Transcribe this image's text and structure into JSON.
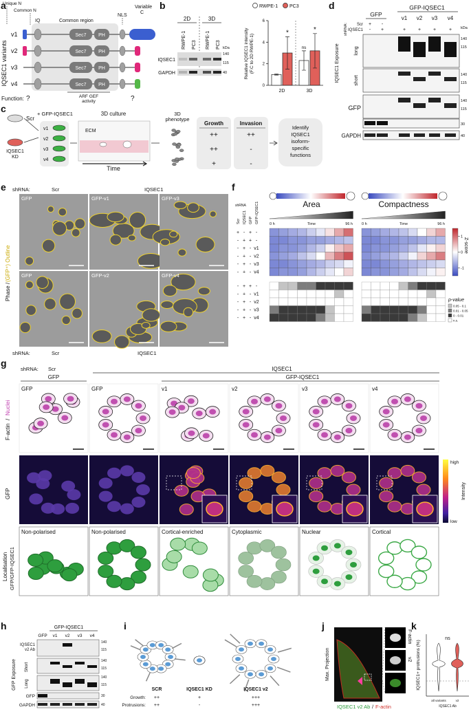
{
  "a": {
    "letter": "a",
    "unique_n": "Unique N",
    "common_n": "Common N",
    "iq": "IQ",
    "common_region": "Common region",
    "nls": "NLS",
    "variable_c": [
      "Variable",
      "C"
    ],
    "sec7": "Sec7",
    "ph": "PH",
    "variants_title": "IQSEC1 variants",
    "variants": [
      "v1",
      "v2",
      "v3",
      "v4"
    ],
    "function": "Function:",
    "unknown": "?",
    "arf_gef": [
      "ARF GEF",
      "activity"
    ]
  },
  "b": {
    "letter": "b",
    "blot": {
      "conditions": [
        "2D",
        "3D"
      ],
      "lanes": [
        "RWPE-1",
        "PC3",
        "RWPE-1",
        "PC3"
      ],
      "rows": [
        "IQSEC1",
        "GAPDH"
      ],
      "kda": "kDa",
      "markers": [
        "140",
        "115",
        "40"
      ]
    },
    "chart_data": {
      "type": "bar",
      "ylabel": [
        "Relative IQSEC1 intensity",
        "(F.C to 2D RWPE-1)"
      ],
      "categories": [
        "2D",
        "3D"
      ],
      "series": [
        {
          "name": "RWPE-1",
          "color": "#ffffff",
          "values": [
            1,
            2.3
          ],
          "errors": [
            0.05,
            0.9
          ]
        },
        {
          "name": "PC3",
          "color": "#e0605a",
          "values": [
            3.0,
            3.2
          ],
          "errors": [
            1.5,
            1.6
          ]
        }
      ],
      "annotations": [
        {
          "series": 1,
          "index": 0,
          "text": "*"
        },
        {
          "series": 0,
          "index": 1,
          "text": "ns"
        },
        {
          "series": 1,
          "index": 1,
          "text": "*"
        }
      ],
      "ylim": [
        0,
        6
      ],
      "yticks": [
        0,
        2,
        4,
        6
      ]
    }
  },
  "c": {
    "letter": "c",
    "scr": "Scr",
    "kd": [
      "IQSEC1",
      "KD"
    ],
    "add": "+ GFP-IQSEC1",
    "variants": [
      "v1",
      "v2",
      "v3",
      "v4"
    ],
    "culture": "3D culture",
    "ecm": "ECM",
    "time": "Time",
    "phenotype": [
      "3D",
      "phenotype"
    ],
    "growth": "Growth",
    "invasion": "Invasion",
    "growth_values": [
      "++",
      "++",
      "+"
    ],
    "invasion_values": [
      "++",
      "-",
      "-"
    ],
    "identify": [
      "Identify",
      "IQSEC1",
      "isoform-",
      "specific",
      "functions"
    ]
  },
  "d": {
    "letter": "d",
    "gfp": "GFP",
    "gfp_iqsec1": "GFP-IQSEC1",
    "variants": [
      "v1",
      "v2",
      "v3",
      "v4"
    ],
    "shrna": "shRNA:",
    "scr": "Scr",
    "iqsec1": "IQSEC1",
    "scr_signs": [
      "+",
      "-"
    ],
    "iqsec1_signs": [
      "-",
      "+",
      "+",
      "+",
      "+",
      "+"
    ],
    "exposure": "IQSEC1 Exposure",
    "long": "long",
    "short": "short",
    "gfp_row": "GFP",
    "gapdh": "GAPDH",
    "kda": "kDa",
    "markers": [
      "140",
      "115",
      "140",
      "115",
      "140",
      "115",
      "30",
      "40"
    ]
  },
  "e": {
    "letter": "e",
    "shrna": "shRNA:",
    "scr": "Scr",
    "iqsec1": "IQSEC1",
    "panels": [
      "GFP",
      "GFP-v1",
      "GFP-v3",
      "GFP",
      "GFP-v2",
      "GFP-v4"
    ],
    "side_black": "Phase /",
    "side_yellow": "(GFP⁺) Outline"
  },
  "f": {
    "letter": "f",
    "shrna": "shRNA",
    "conditions": [
      "Scr",
      "IQSEC1",
      "GFP",
      "GFP-IQSEC1"
    ],
    "rows": [
      [
        "+",
        "-",
        "+",
        "-"
      ],
      [
        "-",
        "+",
        "+",
        "-"
      ],
      [
        "-",
        "+",
        "-",
        "v1"
      ],
      [
        "-",
        "+",
        "-",
        "v2"
      ],
      [
        "-",
        "+",
        "-",
        "v3"
      ],
      [
        "-",
        "+",
        "-",
        "v4"
      ]
    ],
    "p_rows": [
      [
        "-",
        "+",
        "+",
        "-"
      ],
      [
        "-",
        "+",
        "-",
        "v1"
      ],
      [
        "-",
        "+",
        "-",
        "v2"
      ],
      [
        "-",
        "+",
        "-",
        "v3"
      ],
      [
        "-",
        "+",
        "-",
        "v4"
      ]
    ],
    "time": [
      "0 h",
      "Time",
      "96 h"
    ],
    "heatmaps": [
      {
        "title": "Area",
        "z": [
          [
            -0.9,
            -0.8,
            -0.7,
            -0.6,
            -0.4,
            -0.2,
            0.2,
            0.6,
            1.0
          ],
          [
            -1,
            -1,
            -0.9,
            -0.9,
            -0.8,
            -0.8,
            -0.7,
            -0.6,
            -0.5
          ],
          [
            -1,
            -0.9,
            -0.9,
            -0.8,
            -0.6,
            -0.4,
            0.1,
            0.4,
            0.6
          ],
          [
            -0.9,
            -0.8,
            -0.7,
            -0.5,
            -0.3,
            0,
            0.5,
            0.9,
            1.2
          ],
          [
            -1,
            -1,
            -0.9,
            -0.8,
            -0.7,
            -0.6,
            -0.4,
            -0.3,
            -0.1
          ],
          [
            -1,
            -0.9,
            -0.9,
            -0.8,
            -0.6,
            -0.4,
            -0.2,
            0,
            0.3
          ]
        ],
        "p": [
          [
            "n.s.",
            "0.05 - 0.1",
            "0.05 - 0.1",
            "0.01 - 0.05",
            "0.01 - 0.05",
            "0 - 0.01",
            "0 - 0.01",
            "0 - 0.01",
            "0 - 0.01"
          ],
          [
            "n.s.",
            "n.s.",
            "n.s.",
            "n.s.",
            "n.s.",
            "n.s.",
            "n.s.",
            "0.05 - 0.1",
            "n.s."
          ],
          [
            "n.s.",
            "n.s.",
            "n.s.",
            "n.s.",
            "n.s.",
            "n.s.",
            "n.s.",
            "n.s.",
            "n.s."
          ],
          [
            "0.01 - 0.05",
            "0 - 0.01",
            "0 - 0.01",
            "0 - 0.01",
            "0 - 0.01",
            "0 - 0.01",
            "0.05 - 0.1",
            "n.s.",
            "n.s."
          ],
          [
            "0 - 0.01",
            "0 - 0.01",
            "0 - 0.01",
            "0 - 0.01",
            "0 - 0.01",
            "0.01 - 0.05",
            "0.05 - 0.1",
            "n.s.",
            "n.s."
          ]
        ]
      },
      {
        "title": "Compactness",
        "z": [
          [
            -0.9,
            -0.8,
            -0.7,
            -0.6,
            -0.5,
            -0.3,
            0,
            0.3,
            0.6
          ],
          [
            -1,
            -1,
            -0.9,
            -0.9,
            -0.8,
            -0.8,
            -0.7,
            -0.6,
            -0.6
          ],
          [
            -1,
            -0.9,
            -0.9,
            -0.8,
            -0.7,
            -0.5,
            -0.2,
            0.1,
            0.3
          ],
          [
            -0.9,
            -0.8,
            -0.7,
            -0.6,
            -0.4,
            -0.1,
            0.3,
            0.6,
            0.9
          ],
          [
            -1,
            -1,
            -0.9,
            -0.8,
            -0.7,
            -0.6,
            -0.5,
            -0.4,
            -0.3
          ],
          [
            -1,
            -0.9,
            -0.9,
            -0.8,
            -0.7,
            -0.5,
            -0.3,
            -0.1,
            0.1
          ]
        ],
        "p": [
          [
            "n.s.",
            "n.s.",
            "n.s.",
            "n.s.",
            "0.05 - 0.1",
            "0.01 - 0.05",
            "0 - 0.01",
            "0 - 0.01",
            "0 - 0.01"
          ],
          [
            "n.s.",
            "n.s.",
            "n.s.",
            "n.s.",
            "n.s.",
            "n.s.",
            "n.s.",
            "0.05 - 0.1",
            "n.s."
          ],
          [
            "n.s.",
            "n.s.",
            "n.s.",
            "n.s.",
            "n.s.",
            "n.s.",
            "n.s.",
            "n.s.",
            "n.s."
          ],
          [
            "0.01 - 0.05",
            "0 - 0.01",
            "0 - 0.01",
            "0 - 0.01",
            "0 - 0.01",
            "0 - 0.01",
            "0.01 - 0.05",
            "n.s.",
            "n.s."
          ],
          [
            "0 - 0.01",
            "0 - 0.01",
            "0 - 0.01",
            "0 - 0.01",
            "0 - 0.01",
            "0.01 - 0.05",
            "0.05 - 0.1",
            "n.s.",
            "n.s."
          ]
        ]
      }
    ],
    "zscale": {
      "label": "Z-score",
      "lim": [
        -1.5,
        1.5
      ],
      "ticks": [
        1,
        0,
        -1
      ],
      "colors": [
        "#3b4cc0",
        "#ffffff",
        "#c0272d"
      ]
    },
    "p_legend": {
      "title": "p-value",
      "levels": [
        "0.05 - 0.1",
        "0.01 - 0.05",
        "0 - 0.01",
        "n.s."
      ],
      "colors": [
        "#c4c4c4",
        "#7d7d7d",
        "#3a3a3a",
        "#ffffff"
      ]
    }
  },
  "g": {
    "letter": "g",
    "shrna": "shRNA:",
    "scr": "Scr",
    "iqsec1": "IQSEC1",
    "gfp": "GFP",
    "gfp_iqsec1": "GFP-IQSEC1",
    "columns": [
      "GFP",
      "GFP",
      "v1",
      "v2",
      "v3",
      "v4"
    ],
    "row_labels": {
      "factin": "F-actin",
      "slash": "/",
      "nuclei": "Nuclei",
      "gfp": "GFP",
      "localisation": "Localisation",
      "localisation_sub": "GFP/GFP-IQSEC1"
    },
    "intensity": {
      "label": "Intensity",
      "high": "high",
      "low": "low"
    },
    "localisation": [
      "Non-polarised",
      "Non-polarised",
      "Cortical-enriched",
      "Cytoplasmic",
      "Nuclear",
      "Cortical"
    ]
  },
  "h": {
    "letter": "h",
    "gfp_iqsec1": "GFP-IQSEC1",
    "lanes": [
      "GFP",
      "v1",
      "v2",
      "v3",
      "v4"
    ],
    "rows": [
      [
        "IQSEC1",
        "v2 Ab"
      ],
      [
        "Short"
      ],
      [
        "Long"
      ],
      [
        "GFP"
      ],
      [
        "GAPDH"
      ]
    ],
    "exposure": "GFP Exposure",
    "markers": [
      "140",
      "115",
      "140",
      "115",
      "140",
      "115",
      "30",
      "40"
    ]
  },
  "i": {
    "letter": "i",
    "groups": [
      "SCR",
      "IQSEC1 KD",
      "IQSEC1 v2"
    ],
    "growth": "Growth:",
    "protrusions": "Protrusions:",
    "growth_values": [
      "++",
      "+",
      "+++"
    ],
    "protrusion_values": [
      "++",
      "-",
      "+++"
    ]
  },
  "j": {
    "letter": "j",
    "projection": "Max. Projection",
    "insets": [
      "F-actin",
      "v2"
    ],
    "caption_green": "IQSEC1 v2 Ab",
    "caption_sep": "/",
    "caption_red": "F-actin"
  },
  "k": {
    "letter": "k",
    "ylabel": "IQSEC1+ protrusions (%)",
    "ns": "ns",
    "categories": [
      "all variants",
      "v2"
    ],
    "xlabel": "IQSEC1 Ab"
  }
}
